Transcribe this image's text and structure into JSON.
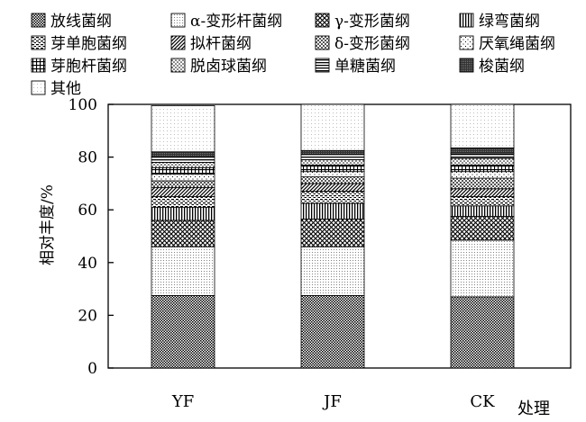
{
  "chart_data": {
    "type": "bar",
    "stacked": true,
    "title": "",
    "xlabel": "处理",
    "ylabel": "相对丰度/%",
    "ylim": [
      0,
      100
    ],
    "yticks": [
      0,
      20,
      40,
      60,
      80,
      100
    ],
    "categories": [
      "YF",
      "JF",
      "CK"
    ],
    "legend_position": "top",
    "grid": false,
    "series": [
      {
        "name": "放线菌纲",
        "values": [
          27.5,
          27.5,
          27.0
        ],
        "fill": "dense-check"
      },
      {
        "name": "α-变形杆菌纲",
        "values": [
          18.5,
          18.5,
          21.5
        ],
        "fill": "fine-dots"
      },
      {
        "name": "γ-变形菌纲",
        "values": [
          10.0,
          10.5,
          9.0
        ],
        "fill": "diagonal-cross"
      },
      {
        "name": "绿弯菌纲",
        "values": [
          5.0,
          6.0,
          4.0
        ],
        "fill": "vertical-lines"
      },
      {
        "name": "芽单胞菌纲",
        "values": [
          4.0,
          4.5,
          3.5
        ],
        "fill": "horizontal-dashes"
      },
      {
        "name": "拟杆菌纲",
        "values": [
          3.5,
          3.0,
          3.0
        ],
        "fill": "diagonal-lines"
      },
      {
        "name": "δ-变形菌纲",
        "values": [
          2.5,
          2.5,
          4.0
        ],
        "fill": "small-check"
      },
      {
        "name": "厌氧绳菌纲",
        "values": [
          2.5,
          2.0,
          2.5
        ],
        "fill": "sparse-dots"
      },
      {
        "name": "芽胞杆菌纲",
        "values": [
          2.5,
          2.5,
          2.5
        ],
        "fill": "grid"
      },
      {
        "name": "脱卤球菌纲",
        "values": [
          2.0,
          2.0,
          2.5
        ],
        "fill": "medium-dots"
      },
      {
        "name": "单糖菌纲",
        "values": [
          2.0,
          2.0,
          2.0
        ],
        "fill": "horizontal-lines"
      },
      {
        "name": "梭菌纲",
        "values": [
          2.0,
          1.5,
          2.0
        ],
        "fill": "solid-dark"
      },
      {
        "name": "其他",
        "values": [
          17.5,
          17.5,
          16.5
        ],
        "fill": "light-dots"
      }
    ]
  }
}
